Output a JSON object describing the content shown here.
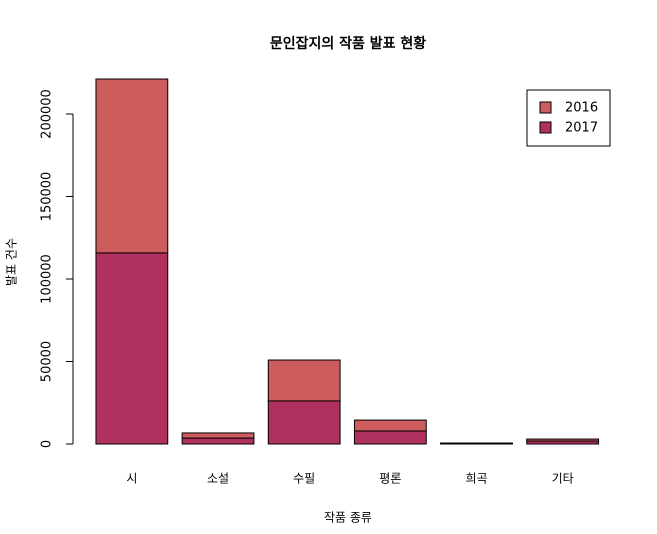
{
  "chart_data": {
    "type": "stacked-bar",
    "title": "문인잡지의 작품 발표 현황",
    "x_label": "작품 종류",
    "y_label": "발표 건수",
    "categories": [
      "시",
      "소설",
      "수필",
      "평론",
      "희곡",
      "기타"
    ],
    "series": [
      {
        "name": "2016",
        "color": "#cd5c5c",
        "values": [
          105400,
          3100,
          24800,
          6600,
          300,
          1200
        ]
      },
      {
        "name": "2017",
        "color": "#b03060",
        "values": [
          115800,
          3600,
          26100,
          7900,
          300,
          1800
        ]
      }
    ],
    "ylim": [
      0,
      230000
    ],
    "yticks": [
      0,
      50000,
      100000,
      150000,
      200000
    ],
    "grid": false,
    "legend": "topright"
  }
}
